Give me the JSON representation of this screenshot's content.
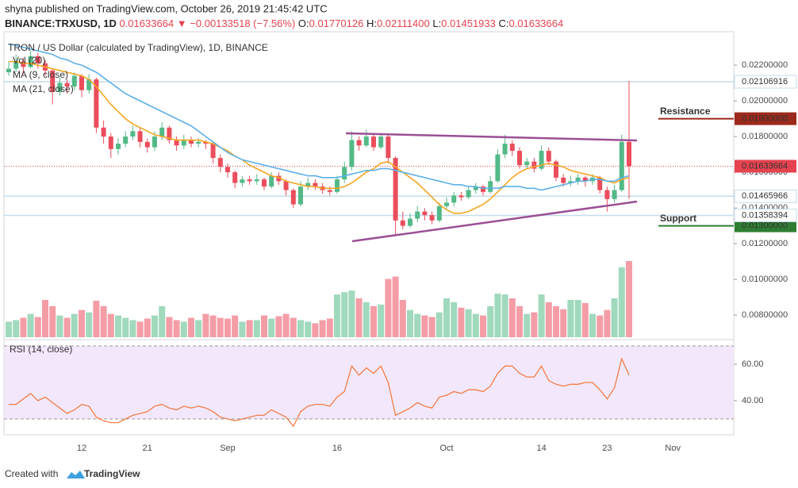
{
  "header": {
    "line1": "shyna published on TradingView.com, October 26, 2019 21:45:42 UTC",
    "symbol": "BINANCE:TRXUSD, 1D",
    "last": "0.01633664",
    "arrow": "▼",
    "change": "−0.00133518 (−7.56%)",
    "stats": [
      {
        "k": "O:",
        "v": "0.01770126"
      },
      {
        "k": "H:",
        "v": "0.02111400"
      },
      {
        "k": "L:",
        "v": "0.01451933"
      },
      {
        "k": "C:",
        "v": "0.01633664"
      }
    ]
  },
  "footer": {
    "text": "Created with",
    "brand": "TradingView"
  },
  "chart_data": {
    "type": "candlestick",
    "title": "TRON / US Dollar (calculated by TradingView), 1D, BINANCE",
    "up_color": "#53b987",
    "down_color": "#eb4d5c",
    "grid": false,
    "ylim": [
      0.00676,
      0.02387
    ],
    "yticks": [
      {
        "value": 0.022,
        "label": "0.02200000"
      },
      {
        "value": 0.02,
        "label": "0.02000000"
      },
      {
        "value": 0.018,
        "label": "0.01800000"
      },
      {
        "value": 0.016,
        "label": "0.01600000"
      },
      {
        "value": 0.014,
        "label": "0.01400000"
      },
      {
        "value": 0.012,
        "label": "0.01200000"
      },
      {
        "value": 0.01,
        "label": "0.01000000"
      },
      {
        "value": 0.008,
        "label": "0.00800000"
      }
    ],
    "categories": [
      null,
      null,
      null,
      null,
      null,
      null,
      null,
      null,
      null,
      null,
      "12",
      null,
      null,
      null,
      null,
      null,
      null,
      null,
      null,
      "21",
      null,
      null,
      null,
      null,
      null,
      null,
      null,
      null,
      null,
      null,
      "Sep",
      null,
      null,
      null,
      null,
      null,
      null,
      null,
      null,
      null,
      null,
      null,
      null,
      null,
      null,
      "16",
      null,
      null,
      null,
      null,
      null,
      null,
      null,
      null,
      null,
      null,
      null,
      null,
      null,
      null,
      "Oct",
      null,
      null,
      null,
      null,
      null,
      null,
      null,
      null,
      null,
      null,
      null,
      null,
      "14",
      null,
      null,
      null,
      null,
      null,
      null,
      null,
      null,
      "23",
      null,
      null,
      null,
      null,
      null,
      null,
      null,
      null,
      "Nov"
    ],
    "ohlc": [
      [
        0.0216,
        0.0222,
        0.0214,
        0.0218
      ],
      [
        0.0218,
        0.0226,
        0.0216,
        0.0222
      ],
      [
        0.0222,
        0.0224,
        0.0215,
        0.0219
      ],
      [
        0.0219,
        0.0228,
        0.0218,
        0.0225
      ],
      [
        0.0225,
        0.0227,
        0.0218,
        0.0221
      ],
      [
        0.0221,
        0.0223,
        0.0214,
        0.0217
      ],
      [
        0.0217,
        0.0218,
        0.0198,
        0.0205
      ],
      [
        0.0205,
        0.0213,
        0.0203,
        0.021
      ],
      [
        0.021,
        0.0212,
        0.0204,
        0.0208
      ],
      [
        0.0208,
        0.0216,
        0.0206,
        0.0214
      ],
      [
        0.0214,
        0.0215,
        0.0202,
        0.0206
      ],
      [
        0.0206,
        0.0215,
        0.0204,
        0.0212
      ],
      [
        0.0212,
        0.0213,
        0.0182,
        0.0185
      ],
      [
        0.0185,
        0.0189,
        0.0176,
        0.018
      ],
      [
        0.018,
        0.0182,
        0.0168,
        0.0173
      ],
      [
        0.0173,
        0.0179,
        0.017,
        0.0176
      ],
      [
        0.0176,
        0.0183,
        0.0174,
        0.018
      ],
      [
        0.018,
        0.0186,
        0.0178,
        0.0183
      ],
      [
        0.0183,
        0.0185,
        0.0174,
        0.0177
      ],
      [
        0.0177,
        0.0179,
        0.0171,
        0.0174
      ],
      [
        0.0174,
        0.0183,
        0.0172,
        0.018
      ],
      [
        0.018,
        0.0188,
        0.0178,
        0.0185
      ],
      [
        0.0185,
        0.0186,
        0.0176,
        0.0178
      ],
      [
        0.0178,
        0.018,
        0.0172,
        0.0175
      ],
      [
        0.0175,
        0.0181,
        0.0173,
        0.0178
      ],
      [
        0.0178,
        0.018,
        0.0174,
        0.0176
      ],
      [
        0.0176,
        0.0179,
        0.0174,
        0.0177
      ],
      [
        0.0177,
        0.0178,
        0.0173,
        0.0176
      ],
      [
        0.0176,
        0.0177,
        0.0165,
        0.0168
      ],
      [
        0.0168,
        0.017,
        0.016,
        0.0163
      ],
      [
        0.0163,
        0.0165,
        0.0157,
        0.016
      ],
      [
        0.016,
        0.0161,
        0.0151,
        0.0154
      ],
      [
        0.0154,
        0.0158,
        0.0152,
        0.0156
      ],
      [
        0.0156,
        0.0158,
        0.0153,
        0.0155
      ],
      [
        0.0155,
        0.0159,
        0.0153,
        0.0156
      ],
      [
        0.0156,
        0.0157,
        0.015,
        0.0152
      ],
      [
        0.0152,
        0.016,
        0.0151,
        0.0158
      ],
      [
        0.0158,
        0.016,
        0.0153,
        0.0155
      ],
      [
        0.0155,
        0.0156,
        0.0147,
        0.015
      ],
      [
        0.015,
        0.0151,
        0.014,
        0.0142
      ],
      [
        0.0142,
        0.0155,
        0.0141,
        0.0152
      ],
      [
        0.0152,
        0.0157,
        0.015,
        0.0154
      ],
      [
        0.0154,
        0.0156,
        0.015,
        0.0152
      ],
      [
        0.0152,
        0.0154,
        0.0148,
        0.015
      ],
      [
        0.015,
        0.0152,
        0.0147,
        0.0149
      ],
      [
        0.0149,
        0.0158,
        0.0148,
        0.0156
      ],
      [
        0.0156,
        0.0166,
        0.0154,
        0.0163
      ],
      [
        0.0163,
        0.0183,
        0.0161,
        0.0178
      ],
      [
        0.0178,
        0.018,
        0.0172,
        0.0175
      ],
      [
        0.0175,
        0.0184,
        0.0174,
        0.018
      ],
      [
        0.018,
        0.0182,
        0.0172,
        0.0174
      ],
      [
        0.0174,
        0.0182,
        0.0173,
        0.018
      ],
      [
        0.018,
        0.0181,
        0.0165,
        0.0168
      ],
      [
        0.0168,
        0.0169,
        0.0125,
        0.0133
      ],
      [
        0.0133,
        0.0138,
        0.0128,
        0.013
      ],
      [
        0.013,
        0.0137,
        0.0129,
        0.0134
      ],
      [
        0.0134,
        0.0141,
        0.0132,
        0.0138
      ],
      [
        0.0138,
        0.014,
        0.0133,
        0.0136
      ],
      [
        0.0136,
        0.0138,
        0.0131,
        0.0133
      ],
      [
        0.0133,
        0.0143,
        0.0132,
        0.0141
      ],
      [
        0.0141,
        0.0146,
        0.0139,
        0.0143
      ],
      [
        0.0143,
        0.0149,
        0.0141,
        0.0147
      ],
      [
        0.0147,
        0.0149,
        0.0144,
        0.0146
      ],
      [
        0.0146,
        0.0152,
        0.0145,
        0.015
      ],
      [
        0.015,
        0.0154,
        0.0148,
        0.0152
      ],
      [
        0.0152,
        0.0153,
        0.0147,
        0.0149
      ],
      [
        0.0149,
        0.0158,
        0.0148,
        0.0155
      ],
      [
        0.0155,
        0.0173,
        0.0154,
        0.017
      ],
      [
        0.017,
        0.0181,
        0.0168,
        0.0176
      ],
      [
        0.0176,
        0.0178,
        0.0169,
        0.0172
      ],
      [
        0.0172,
        0.0174,
        0.0162,
        0.0164
      ],
      [
        0.0164,
        0.0168,
        0.0162,
        0.0166
      ],
      [
        0.0166,
        0.0168,
        0.016,
        0.0162
      ],
      [
        0.0162,
        0.0175,
        0.0161,
        0.0172
      ],
      [
        0.0172,
        0.0174,
        0.0164,
        0.0166
      ],
      [
        0.0166,
        0.0167,
        0.0155,
        0.0157
      ],
      [
        0.0157,
        0.0159,
        0.0152,
        0.0154
      ],
      [
        0.0154,
        0.0158,
        0.0152,
        0.0155
      ],
      [
        0.0155,
        0.0159,
        0.0153,
        0.0157
      ],
      [
        0.0157,
        0.0158,
        0.0152,
        0.0155
      ],
      [
        0.0155,
        0.0159,
        0.0153,
        0.0157
      ],
      [
        0.0157,
        0.0158,
        0.0148,
        0.015
      ],
      [
        0.015,
        0.0152,
        0.0138,
        0.0145
      ],
      [
        0.0145,
        0.0153,
        0.0143,
        0.015
      ],
      [
        0.015,
        0.0181,
        0.0149,
        0.01770126
      ],
      [
        0.01770126,
        0.021114,
        0.01451933,
        0.01633664
      ],
      null,
      null,
      null,
      null,
      null,
      null
    ],
    "volume": {
      "name": "Vol (20)",
      "values": [
        20,
        22,
        25,
        30,
        26,
        48,
        40,
        28,
        25,
        30,
        35,
        32,
        47,
        40,
        30,
        28,
        25,
        22,
        20,
        24,
        28,
        40,
        26,
        22,
        20,
        25,
        22,
        30,
        28,
        25,
        24,
        28,
        20,
        22,
        22,
        28,
        24,
        27,
        30,
        25,
        22,
        20,
        18,
        22,
        24,
        55,
        58,
        60,
        50,
        45,
        40,
        42,
        75,
        78,
        48,
        35,
        30,
        28,
        26,
        32,
        50,
        45,
        38,
        36,
        30,
        28,
        40,
        56,
        55,
        50,
        40,
        30,
        32,
        55,
        45,
        40,
        36,
        48,
        48,
        44,
        30,
        28,
        35,
        50,
        90,
        98,
        null,
        null,
        null,
        null,
        null,
        null
      ]
    },
    "series": [
      {
        "name": "MA (9, close)",
        "color": "#f5a623",
        "values": [
          0.0222,
          0.0222,
          0.0221,
          0.0221,
          0.022,
          0.0219,
          0.0218,
          0.0217,
          0.0216,
          0.0215,
          0.0214,
          0.0212,
          0.0208,
          0.0203,
          0.0198,
          0.0194,
          0.019,
          0.0187,
          0.0185,
          0.0183,
          0.0181,
          0.018,
          0.0179,
          0.0178,
          0.0178,
          0.0178,
          0.0178,
          0.0177,
          0.0176,
          0.0174,
          0.0172,
          0.0169,
          0.0167,
          0.0164,
          0.0162,
          0.016,
          0.0158,
          0.0157,
          0.0155,
          0.0154,
          0.0153,
          0.0152,
          0.0152,
          0.0151,
          0.0151,
          0.0151,
          0.0152,
          0.0154,
          0.0157,
          0.016,
          0.0162,
          0.0165,
          0.0166,
          0.0163,
          0.016,
          0.0157,
          0.0154,
          0.015,
          0.0146,
          0.0142,
          0.0139,
          0.0137,
          0.0137,
          0.0138,
          0.014,
          0.0142,
          0.0145,
          0.0149,
          0.0153,
          0.0157,
          0.016,
          0.0162,
          0.0163,
          0.0164,
          0.0165,
          0.0164,
          0.0163,
          0.0161,
          0.016,
          0.0159,
          0.0158,
          0.0157,
          0.0155,
          0.0154,
          0.0156,
          0.0157,
          null,
          null,
          null,
          null,
          null,
          null
        ]
      },
      {
        "name": "MA (21, close)",
        "color": "#5db0e8",
        "values": [
          0.0232,
          0.0231,
          0.023,
          0.0229,
          0.0228,
          0.0227,
          0.0226,
          0.0224,
          0.0223,
          0.0221,
          0.022,
          0.0218,
          0.0216,
          0.0213,
          0.021,
          0.0207,
          0.0204,
          0.0202,
          0.02,
          0.0198,
          0.0196,
          0.0194,
          0.0192,
          0.019,
          0.0188,
          0.0186,
          0.0183,
          0.018,
          0.0177,
          0.0174,
          0.0171,
          0.0169,
          0.0167,
          0.0166,
          0.0165,
          0.0164,
          0.0163,
          0.0162,
          0.0161,
          0.016,
          0.0159,
          0.0158,
          0.0158,
          0.0157,
          0.0157,
          0.0157,
          0.0158,
          0.0159,
          0.016,
          0.0161,
          0.0161,
          0.0162,
          0.0162,
          0.0161,
          0.016,
          0.0159,
          0.0158,
          0.0157,
          0.0156,
          0.0155,
          0.0154,
          0.0153,
          0.0153,
          0.0152,
          0.0152,
          0.0151,
          0.0151,
          0.0151,
          0.0152,
          0.0152,
          0.0152,
          0.0151,
          0.0151,
          0.015,
          0.0151,
          0.0152,
          0.0153,
          0.0154,
          0.0155,
          0.0155,
          0.0156,
          0.0156,
          0.0155,
          0.0155,
          0.0157,
          0.0158,
          null,
          null,
          null,
          null,
          null,
          null
        ]
      }
    ],
    "levels": [
      {
        "value": 0.02106916,
        "label": "0.02106916"
      },
      {
        "value": 0.01465966,
        "label": "0.01465966"
      },
      {
        "value": 0.01358394,
        "label": "0.01358394"
      }
    ],
    "level_color": "#c5dcee",
    "last": {
      "value": 0.01633664,
      "label": "0.01633664",
      "color": "#e5434f"
    },
    "annotations": [
      {
        "text": "Resistance",
        "value": 0.019,
        "label": "0.01900000",
        "color": "#9c2a1c"
      },
      {
        "text": "Support",
        "value": 0.013,
        "label": "0.01300000",
        "color": "#2e7d32"
      }
    ],
    "rsi": {
      "name": "RSI (14, close)",
      "color": "#f07f45",
      "ylim": [
        21.3,
        72.6
      ],
      "yticks": [
        {
          "value": 60,
          "label": "60.00"
        },
        {
          "value": 40,
          "label": "40.00"
        }
      ],
      "bands": [
        30,
        70
      ],
      "band_color": "#f3e7fb",
      "values": [
        38,
        38,
        41,
        44,
        40,
        42,
        39,
        36,
        33,
        35,
        38,
        37,
        31,
        29,
        28,
        28,
        30,
        32,
        33,
        34,
        37,
        38,
        36,
        35,
        37,
        36,
        37,
        36,
        34,
        31,
        30,
        29,
        30,
        31,
        32,
        32,
        35,
        33,
        31,
        26,
        34,
        37,
        38,
        38,
        37,
        42,
        45,
        59,
        54,
        58,
        55,
        59,
        50,
        32,
        34,
        36,
        39,
        37,
        36,
        42,
        43,
        45,
        44,
        46,
        46,
        45,
        48,
        55,
        59,
        59,
        55,
        53,
        53,
        59,
        51,
        49,
        48,
        49,
        49,
        50,
        50,
        46,
        41,
        47,
        63,
        54,
        null,
        null,
        null,
        null,
        null,
        null
      ]
    }
  }
}
